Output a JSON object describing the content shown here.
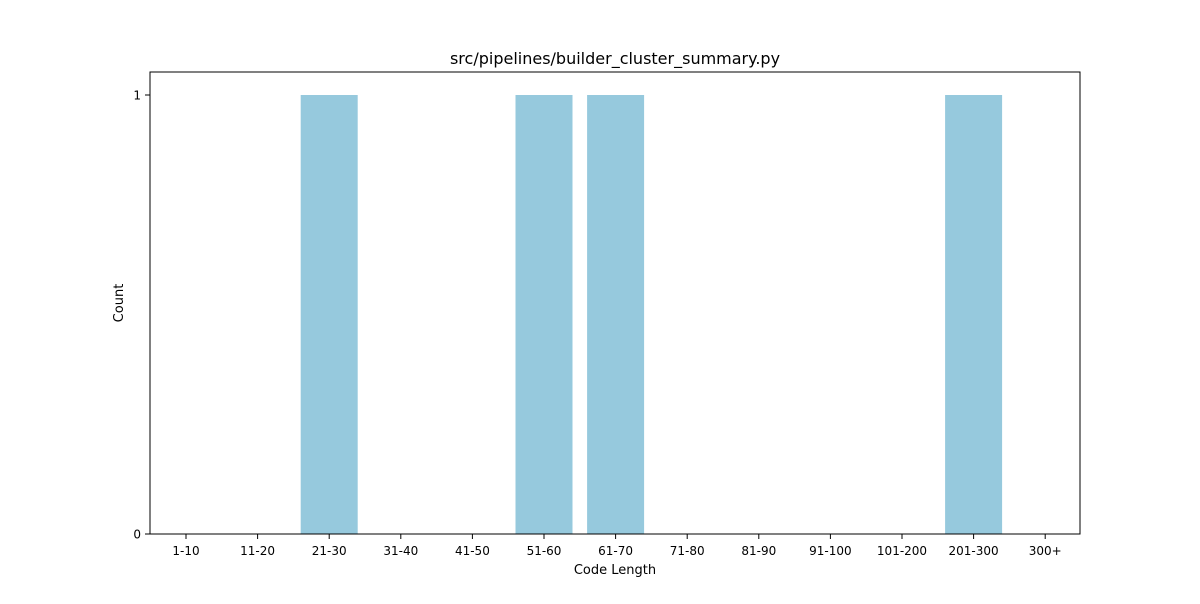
{
  "chart_data": {
    "type": "bar",
    "title": "src/pipelines/builder_cluster_summary.py",
    "xlabel": "Code Length",
    "ylabel": "Count",
    "categories": [
      "1-10",
      "11-20",
      "21-30",
      "31-40",
      "41-50",
      "51-60",
      "61-70",
      "71-80",
      "81-90",
      "91-100",
      "101-200",
      "201-300",
      "300+"
    ],
    "values": [
      0,
      0,
      1,
      0,
      0,
      1,
      1,
      0,
      0,
      0,
      0,
      1,
      0
    ],
    "ylim": [
      0,
      1
    ],
    "yticks": [
      0,
      1
    ],
    "grid": false,
    "legend": "none",
    "colors": {
      "bar": "#96c9dd",
      "axis": "#000000"
    }
  }
}
